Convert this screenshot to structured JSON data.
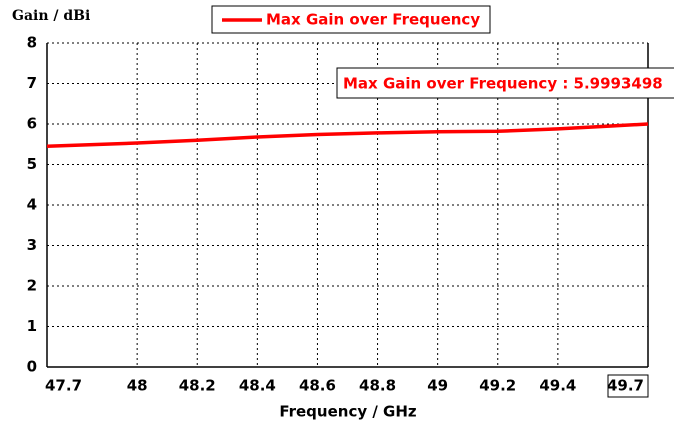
{
  "chart_data": {
    "type": "line",
    "ylabel": "Gain / dBi",
    "xlabel": "Frequency / GHz",
    "annotation": "Max Gain over Frequency : 5.9993498",
    "x": [
      47.7,
      48,
      48.2,
      48.4,
      48.6,
      48.8,
      49,
      49.2,
      49.4,
      49.7
    ],
    "series": [
      {
        "name": "Max Gain over Frequency",
        "color": "#ff0000",
        "values": [
          5.45,
          5.53,
          5.6,
          5.68,
          5.74,
          5.78,
          5.81,
          5.82,
          5.88,
          5.999
        ]
      }
    ],
    "xlim": [
      47.7,
      49.7
    ],
    "xticks": [
      47.7,
      48,
      48.2,
      48.4,
      48.6,
      48.8,
      49,
      49.2,
      49.4,
      49.7
    ],
    "ylim": [
      0,
      8
    ],
    "yticks": [
      0,
      1,
      2,
      3,
      4,
      5,
      6,
      7,
      8
    ],
    "grid": true
  }
}
